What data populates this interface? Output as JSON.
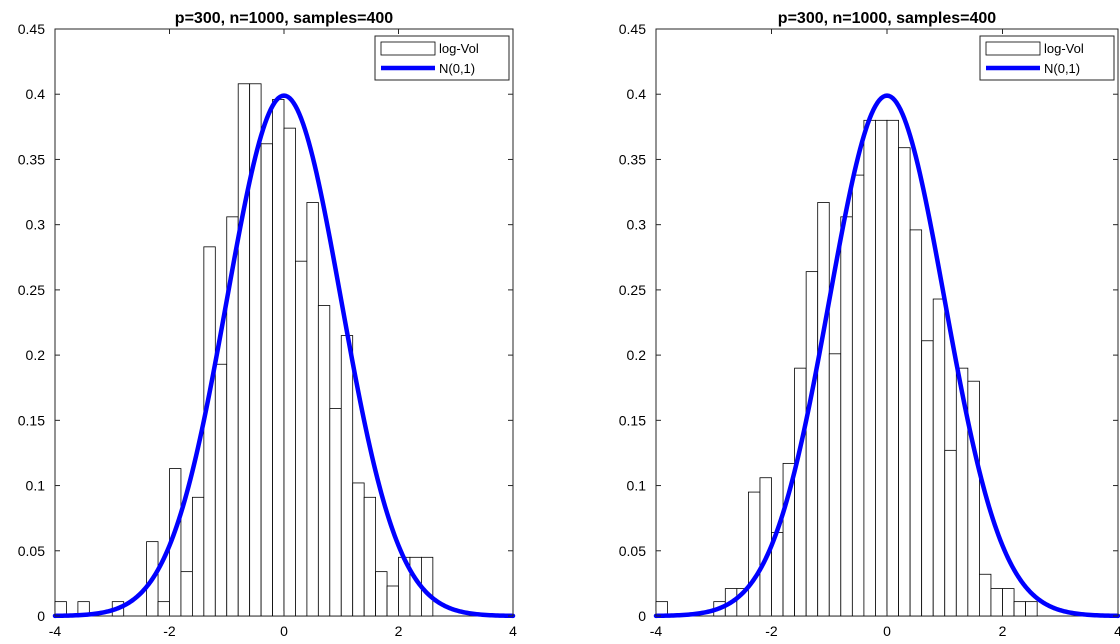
{
  "chart_data": [
    {
      "type": "bar",
      "title": "p=300, n=1000, samples=400",
      "xlabel": "",
      "ylabel": "",
      "xlim": [
        -4,
        4
      ],
      "ylim": [
        0,
        0.45
      ],
      "xticks": [
        "-4",
        "-2",
        "0",
        "2",
        "4"
      ],
      "yticks": [
        "0",
        "0.05",
        "0.1",
        "0.15",
        "0.2",
        "0.25",
        "0.3",
        "0.35",
        "0.4",
        "0.45"
      ],
      "grid": false,
      "legend": {
        "placement": "top-right",
        "entries": [
          "log-Vol",
          "N(0,1)"
        ]
      },
      "histogram": {
        "name": "log-Vol",
        "bin_edges": [
          -4.0,
          -3.8,
          -3.6,
          -3.4,
          -3.2,
          -3.0,
          -2.8,
          -2.6,
          -2.4,
          -2.2,
          -2.0,
          -1.8,
          -1.6,
          -1.4,
          -1.2,
          -1.0,
          -0.8,
          -0.6,
          -0.4,
          -0.2,
          0.0,
          0.2,
          0.4,
          0.6,
          0.8,
          1.0,
          1.2,
          1.4,
          1.6,
          1.8,
          2.0,
          2.2,
          2.4,
          2.6,
          2.8
        ],
        "values": [
          0.011,
          0.0,
          0.011,
          0.0,
          0.0,
          0.011,
          0.0,
          0.0,
          0.057,
          0.011,
          0.113,
          0.034,
          0.091,
          0.283,
          0.193,
          0.306,
          0.408,
          0.408,
          0.362,
          0.396,
          0.374,
          0.272,
          0.317,
          0.238,
          0.159,
          0.215,
          0.102,
          0.091,
          0.034,
          0.023,
          0.045,
          0.045,
          0.045,
          0.0
        ]
      },
      "curve": {
        "name": "N(0,1)",
        "type": "line",
        "color": "#0000ff",
        "function": "standard normal pdf"
      },
      "colors": {
        "bar_edge": "#000000",
        "bar_fill": "#ffffff",
        "curve": "#0000ff"
      }
    },
    {
      "type": "bar",
      "title": "p=300, n=1000, samples=400",
      "xlabel": "",
      "ylabel": "",
      "xlim": [
        -4,
        4
      ],
      "ylim": [
        0,
        0.45
      ],
      "xticks": [
        "-4",
        "-2",
        "0",
        "2",
        "4"
      ],
      "yticks": [
        "0",
        "0.05",
        "0.1",
        "0.15",
        "0.2",
        "0.25",
        "0.3",
        "0.35",
        "0.4",
        "0.45"
      ],
      "grid": false,
      "legend": {
        "placement": "top-right",
        "entries": [
          "log-Vol",
          "N(0,1)"
        ]
      },
      "histogram": {
        "name": "log-Vol",
        "bin_edges": [
          -4.0,
          -3.8,
          -3.6,
          -3.4,
          -3.2,
          -3.0,
          -2.8,
          -2.6,
          -2.4,
          -2.2,
          -2.0,
          -1.8,
          -1.6,
          -1.4,
          -1.2,
          -1.0,
          -0.8,
          -0.6,
          -0.4,
          -0.2,
          0.0,
          0.2,
          0.4,
          0.6,
          0.8,
          1.0,
          1.2,
          1.4,
          1.6,
          1.8,
          2.0,
          2.2,
          2.4,
          2.6,
          2.8
        ],
        "values": [
          0.011,
          0.0,
          0.0,
          0.0,
          0.0,
          0.011,
          0.021,
          0.021,
          0.095,
          0.106,
          0.064,
          0.117,
          0.19,
          0.264,
          0.317,
          0.201,
          0.306,
          0.338,
          0.38,
          0.38,
          0.38,
          0.359,
          0.296,
          0.211,
          0.243,
          0.127,
          0.19,
          0.18,
          0.032,
          0.021,
          0.021,
          0.011,
          0.011,
          0.0
        ]
      },
      "curve": {
        "name": "N(0,1)",
        "type": "line",
        "color": "#0000ff",
        "function": "standard normal pdf"
      },
      "colors": {
        "bar_edge": "#000000",
        "bar_fill": "#ffffff",
        "curve": "#0000ff"
      }
    }
  ]
}
